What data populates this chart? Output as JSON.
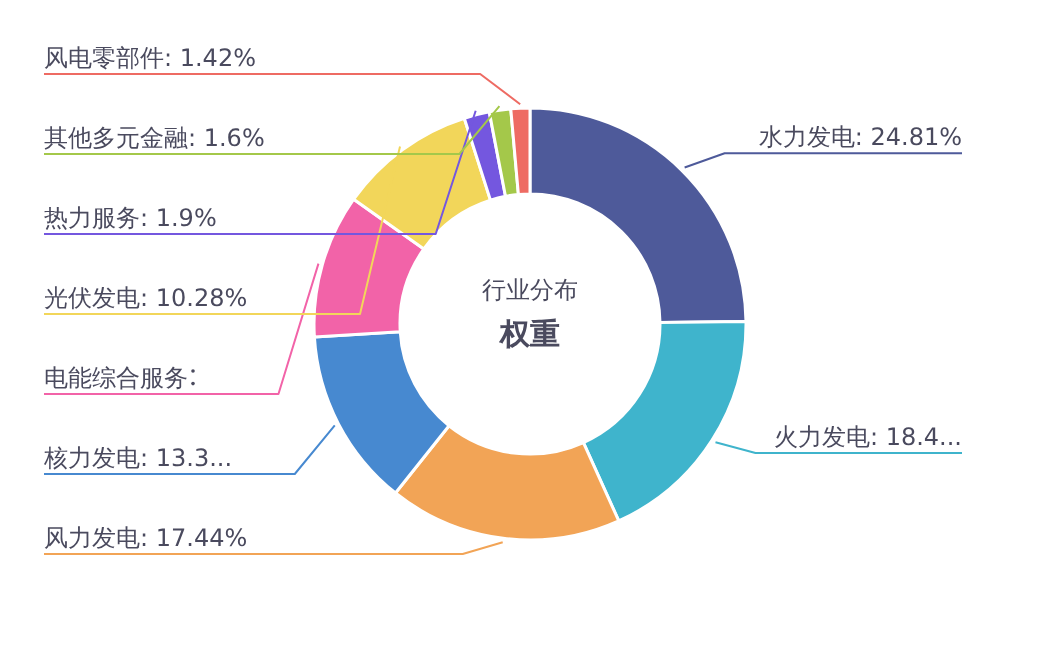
{
  "chart_data": {
    "type": "donut",
    "title": "行业分布",
    "subtitle": "权重",
    "categories": [
      "水力发电",
      "火力发电",
      "风力发电",
      "核力发电",
      "电能综合服务",
      "光伏发电",
      "热力服务",
      "其他多元金融",
      "风电零部件"
    ],
    "values": [
      24.81,
      18.45,
      17.44,
      13.35,
      10.75,
      10.28,
      1.9,
      1.6,
      1.42
    ],
    "value_labels": [
      "24.81%",
      "18.4...",
      "17.44%",
      "13.3...",
      null,
      "10.28%",
      "1.9%",
      "1.6%",
      "1.42%"
    ],
    "colors": [
      "#4e5a9a",
      "#3fb4cc",
      "#f2a456",
      "#4789d0",
      "#f263a8",
      "#f2d65a",
      "#7457df",
      "#a4c84a",
      "#ee6b63"
    ]
  }
}
